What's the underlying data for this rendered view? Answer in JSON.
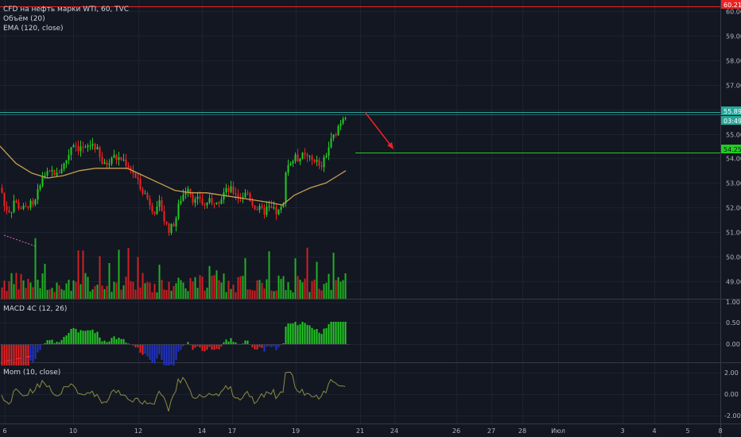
{
  "header": {
    "symbol": "CFD на нефть марки WTI, 60, TVC",
    "volume": "Объём (20)",
    "ema": "EMA (120, close)"
  },
  "panes": {
    "macd_title": "MACD 4C (12, 26)",
    "mom_title": "Mom (10, close)"
  },
  "price_scale": {
    "labels": [
      "60.00",
      "59.00",
      "58.00",
      "57.00",
      "56.00",
      "55.00",
      "54.00",
      "53.00",
      "52.00",
      "51.00",
      "50.00",
      "49.00"
    ],
    "macd_labels": [
      "1.00",
      "0.50",
      "0.00"
    ],
    "mom_labels": [
      "2.00",
      "0.00",
      "-2.00"
    ],
    "badges": {
      "top": "60.21",
      "current": "55.89",
      "countdown": "03:49",
      "target": "54.25"
    }
  },
  "time_axis": {
    "labels": [
      "6",
      "10",
      "12",
      "14",
      "17",
      "19",
      "21",
      "24",
      "26",
      "27",
      "28",
      "Июл",
      "3",
      "4",
      "5",
      "8"
    ]
  },
  "colors": {
    "background": "#131722",
    "up": "#22cc22",
    "down": "#ee2222",
    "ema": "#c8a050",
    "resistance": "#26a69a",
    "target": "#22cc22",
    "top_line": "#ee2222",
    "macd_blue": "#2233cc",
    "mom_line": "#8c8c40"
  },
  "chart_data": {
    "type": "candlestick",
    "price_range": [
      48.5,
      60.3
    ],
    "resistance_level": 55.89,
    "target_level": 54.25,
    "top_level": 60.21,
    "close_path": [
      [
        0,
        52.8
      ],
      [
        3,
        52.2
      ],
      [
        5,
        51.9
      ],
      [
        8,
        52.0
      ],
      [
        12,
        51.8
      ],
      [
        16,
        52.3
      ],
      [
        20,
        52.1
      ],
      [
        25,
        52.0
      ],
      [
        30,
        51.9
      ],
      [
        35,
        52.2
      ],
      [
        40,
        52.0
      ],
      [
        45,
        52.4
      ],
      [
        48,
        53.0
      ],
      [
        52,
        53.2
      ],
      [
        56,
        53.4
      ],
      [
        60,
        53.3
      ],
      [
        65,
        53.5
      ],
      [
        70,
        53.3
      ],
      [
        75,
        53.6
      ],
      [
        80,
        53.8
      ],
      [
        85,
        54.2
      ],
      [
        88,
        54.5
      ],
      [
        92,
        54.7
      ],
      [
        96,
        54.4
      ],
      [
        100,
        54.5
      ],
      [
        105,
        54.3
      ],
      [
        110,
        54.5
      ],
      [
        115,
        54.6
      ],
      [
        120,
        54.4
      ],
      [
        125,
        53.9
      ],
      [
        130,
        53.7
      ],
      [
        135,
        53.9
      ],
      [
        140,
        54.1
      ],
      [
        145,
        54.0
      ],
      [
        150,
        54.0
      ],
      [
        155,
        53.9
      ],
      [
        160,
        53.7
      ],
      [
        165,
        53.5
      ],
      [
        170,
        53.1
      ],
      [
        175,
        52.9
      ],
      [
        180,
        52.6
      ],
      [
        185,
        52.3
      ],
      [
        190,
        52.0
      ],
      [
        195,
        51.8
      ],
      [
        200,
        52.2
      ],
      [
        205,
        51.5
      ],
      [
        210,
        51.1
      ],
      [
        215,
        51.2
      ],
      [
        220,
        51.6
      ],
      [
        225,
        52.3
      ],
      [
        230,
        52.6
      ],
      [
        235,
        52.9
      ],
      [
        240,
        52.4
      ],
      [
        245,
        52.2
      ],
      [
        250,
        52.4
      ],
      [
        255,
        52.0
      ],
      [
        260,
        52.3
      ],
      [
        265,
        52.1
      ],
      [
        270,
        52.4
      ],
      [
        275,
        52.3
      ],
      [
        280,
        52.6
      ],
      [
        285,
        52.7
      ],
      [
        290,
        52.7
      ],
      [
        295,
        52.6
      ],
      [
        300,
        52.4
      ],
      [
        305,
        52.5
      ],
      [
        310,
        52.6
      ],
      [
        315,
        52.2
      ],
      [
        320,
        52.0
      ],
      [
        325,
        51.9
      ],
      [
        330,
        51.8
      ],
      [
        335,
        52.0
      ],
      [
        340,
        51.9
      ],
      [
        345,
        51.8
      ],
      [
        350,
        51.8
      ],
      [
        355,
        52.1
      ],
      [
        358,
        53.6
      ],
      [
        362,
        53.8
      ],
      [
        366,
        53.9
      ],
      [
        370,
        54.0
      ],
      [
        375,
        54.0
      ],
      [
        380,
        54.1
      ],
      [
        385,
        54.0
      ],
      [
        390,
        53.9
      ],
      [
        395,
        54.0
      ],
      [
        400,
        53.6
      ],
      [
        405,
        53.8
      ],
      [
        410,
        54.3
      ],
      [
        415,
        54.7
      ],
      [
        420,
        55.0
      ],
      [
        425,
        55.4
      ],
      [
        430,
        55.7
      ],
      [
        435,
        55.9
      ]
    ],
    "ema_path": [
      [
        0,
        54.5
      ],
      [
        20,
        53.8
      ],
      [
        40,
        53.4
      ],
      [
        60,
        53.2
      ],
      [
        80,
        53.3
      ],
      [
        100,
        53.5
      ],
      [
        120,
        53.6
      ],
      [
        140,
        53.6
      ],
      [
        160,
        53.6
      ],
      [
        180,
        53.3
      ],
      [
        200,
        53.0
      ],
      [
        220,
        52.7
      ],
      [
        240,
        52.6
      ],
      [
        260,
        52.6
      ],
      [
        280,
        52.5
      ],
      [
        300,
        52.4
      ],
      [
        320,
        52.3
      ],
      [
        340,
        52.2
      ],
      [
        355,
        52.1
      ],
      [
        370,
        52.5
      ],
      [
        390,
        52.8
      ],
      [
        410,
        53.0
      ],
      [
        425,
        53.3
      ],
      [
        435,
        53.5
      ]
    ]
  }
}
